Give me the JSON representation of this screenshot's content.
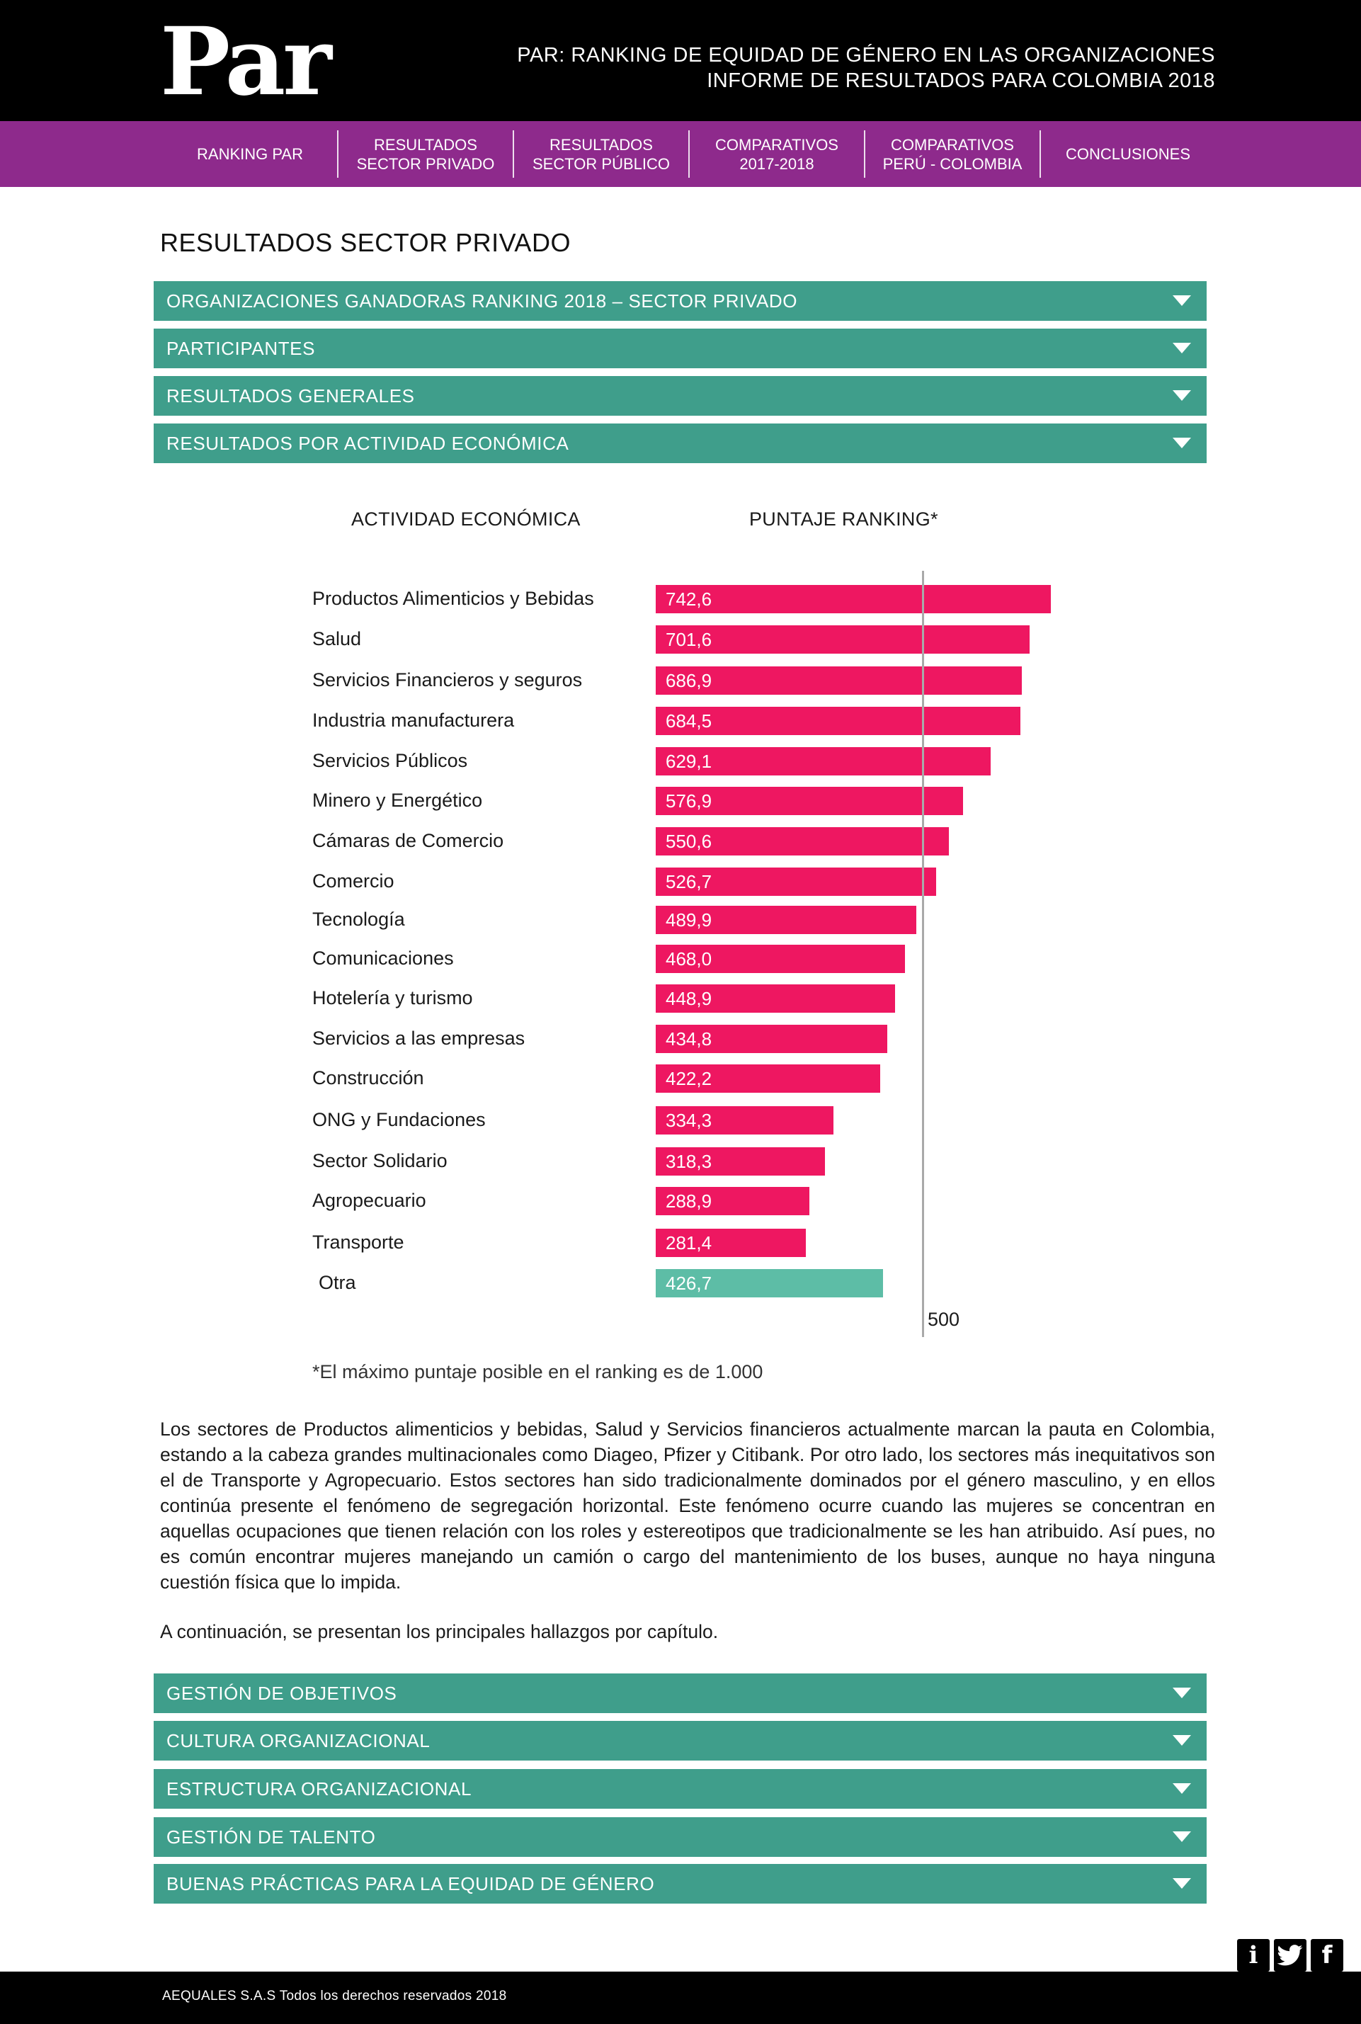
{
  "header": {
    "logo_text": "Par",
    "title_line1": "PAR: RANKING DE EQUIDAD DE GÉNERO EN LAS ORGANIZACIONES",
    "title_line2": "INFORME DE RESULTADOS PARA COLOMBIA 2018"
  },
  "nav": {
    "items": [
      {
        "label": "RANKING PAR"
      },
      {
        "label": "RESULTADOS\nSECTOR PRIVADO"
      },
      {
        "label": "RESULTADOS\nSECTOR PÚBLICO"
      },
      {
        "label": "COMPARATIVOS\n2017-2018"
      },
      {
        "label": "COMPARATIVOS\nPERÚ - COLOMBIA"
      },
      {
        "label": "CONCLUSIONES"
      }
    ]
  },
  "section_title": "RESULTADOS SECTOR PRIVADO",
  "accordion_top": [
    {
      "label": "ORGANIZACIONES GANADORAS RANKING 2018 – SECTOR PRIVADO"
    },
    {
      "label": "PARTICIPANTES"
    },
    {
      "label": "RESULTADOS GENERALES"
    },
    {
      "label": "RESULTADOS POR ACTIVIDAD ECONÓMICA"
    }
  ],
  "chart_data": {
    "type": "bar",
    "orientation": "horizontal",
    "category_header": "ACTIVIDAD ECONÓMICA",
    "value_header": "PUNTAJE RANKING*",
    "categories": [
      "Productos Alimenticios y Bebidas",
      "Salud",
      "Servicios Financieros y seguros",
      "Industria manufacturera",
      "Servicios Públicos",
      "Minero y Energético",
      "Cámaras de Comercio",
      "Comercio",
      "Tecnología",
      "Comunicaciones",
      "Hotelería y turismo",
      "Servicios a las empresas",
      "Construcción",
      "ONG y Fundaciones",
      "Sector Solidario",
      "Agropecuario",
      "Transporte",
      "Otra"
    ],
    "values": [
      742.6,
      701.6,
      686.9,
      684.5,
      629.1,
      576.9,
      550.6,
      526.7,
      489.9,
      468.0,
      448.9,
      434.8,
      422.2,
      334.3,
      318.3,
      288.9,
      281.4,
      426.7
    ],
    "value_labels": [
      "742,6",
      "701,6",
      "686,9",
      "684,5",
      "629,1",
      "576,9",
      "550,6",
      "526,7",
      "489,9",
      "468,0",
      "448,9",
      "434,8",
      "422,2",
      "334,3",
      "318,3",
      "288,9",
      "281,4",
      "426,7"
    ],
    "reference_line": {
      "value": 500,
      "label": "500"
    },
    "colors": {
      "bar": "#ee1761",
      "other": "#5dbda6",
      "reference": "#a9a9a9"
    },
    "footnote": "*El máximo puntaje posible en el ranking es de 1.000"
  },
  "body": {
    "paragraph1": "Los sectores de Productos alimenticios y bebidas, Salud y Servicios financieros actualmente marcan la pauta en Colombia, estando a la cabeza grandes multinacionales como Diageo, Pfizer y Citibank. Por otro lado, los sectores más inequitativos son el de Transporte y Agropecuario. Estos sectores han sido tradicionalmente dominados por el género masculino, y en ellos continúa presente el fenómeno de segregación horizontal. Este fenómeno ocurre cuando las mujeres se concentran en aquellas ocupaciones que tienen relación con los roles y estereotipos que tradicionalmente se les han atribuido. Así pues, no es común encontrar mujeres manejando un camión o cargo del mantenimiento de los buses, aunque no haya ninguna cuestión física que lo impida.",
    "paragraph2": "A continuación, se presentan los principales hallazgos por capítulo."
  },
  "accordion_bottom": [
    {
      "label": "GESTIÓN DE OBJETIVOS"
    },
    {
      "label": "CULTURA ORGANIZACIONAL"
    },
    {
      "label": "ESTRUCTURA ORGANIZACIONAL"
    },
    {
      "label": "GESTIÓN DE TALENTO"
    },
    {
      "label": "BUENAS PRÁCTICAS PARA LA EQUIDAD DE GÉNERO"
    }
  ],
  "social": {
    "info": "i",
    "twitter": "twitter-icon",
    "facebook": "f"
  },
  "footer": {
    "text": "AEQUALES  S.A.S Todos los derechos reservados 2018"
  },
  "colors": {
    "header_bg": "#000000",
    "nav_bg": "#8e2a8c",
    "accordion_bg": "#3f9e8b",
    "bar": "#ee1761",
    "bar_other": "#5dbda6"
  }
}
